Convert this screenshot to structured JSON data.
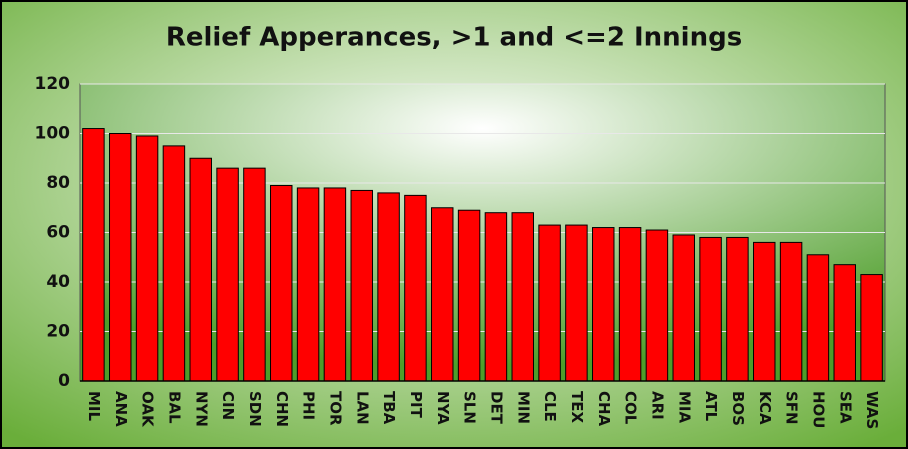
{
  "chart_data": {
    "type": "bar",
    "title": "Relief Apperances,  >1 and <=2 Innings",
    "categories": [
      "MIL",
      "ANA",
      "OAK",
      "BAL",
      "NYN",
      "CIN",
      "SDN",
      "CHN",
      "PHI",
      "TOR",
      "LAN",
      "TBA",
      "PIT",
      "NYA",
      "SLN",
      "DET",
      "MIN",
      "CLE",
      "TEX",
      "CHA",
      "COL",
      "ARI",
      "MIA",
      "ATL",
      "BOS",
      "KCA",
      "SFN",
      "HOU",
      "SEA",
      "WAS"
    ],
    "values": [
      102,
      100,
      99,
      95,
      90,
      86,
      86,
      79,
      78,
      78,
      77,
      76,
      75,
      70,
      69,
      68,
      68,
      63,
      63,
      62,
      62,
      61,
      59,
      58,
      58,
      56,
      56,
      51,
      47,
      43
    ],
    "color": "#ff0000",
    "ylim": [
      0,
      120
    ],
    "yticks": [
      0,
      20,
      40,
      60,
      80,
      100,
      120
    ],
    "grid": true
  }
}
